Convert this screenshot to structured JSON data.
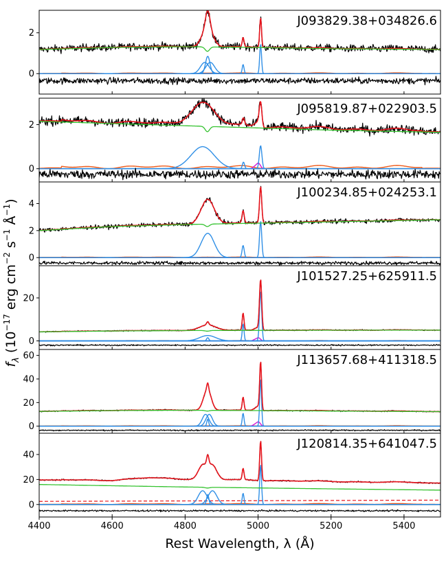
{
  "chart_data": {
    "type": "line",
    "xlabel": "Rest Wavelength, λ (Å)",
    "ylabel": "f_λ (10^-17 erg cm^-2 s^-1 Å^-1)",
    "ylabel_parts": {
      "f": "f",
      "lambda": "λ",
      "open": " (10",
      "exp1": "−17",
      "mid1": " erg cm",
      "exp2": "−2",
      "mid2": " s",
      "exp3": "−1",
      "mid3": " Å",
      "exp4": "−1",
      "close": ")"
    },
    "xlim": [
      4400,
      5500
    ],
    "xticks": [
      "4400",
      "4600",
      "4800",
      "5000",
      "5200",
      "5400"
    ],
    "panels": [
      {
        "name": "J093829.38+034826.6",
        "ylim": [
          -1.0,
          3.1
        ],
        "yticks": [
          "0",
          "2"
        ],
        "continuum": [
          [
            4400,
            1.18
          ],
          [
            4600,
            1.28
          ],
          [
            4800,
            1.32
          ],
          [
            5000,
            1.28
          ],
          [
            5200,
            1.22
          ],
          [
            5500,
            1.18
          ]
        ],
        "gaussians": [
          {
            "c": 4854,
            "a": 0.55,
            "s": 12
          },
          {
            "c": 4862,
            "a": 0.85,
            "s": 6
          },
          {
            "c": 4869,
            "a": 0.55,
            "s": 12
          },
          {
            "c": 4959,
            "a": 0.45,
            "s": 2.5
          },
          {
            "c": 5007,
            "a": 1.45,
            "s": 2.5
          }
        ],
        "fe": 0.04,
        "wing": 0,
        "noise": 0.18,
        "resid_offset": -0.35,
        "resid_noise": 0.15,
        "dashed": null
      },
      {
        "name": "J095819.87+022903.5",
        "ylim": [
          -0.6,
          3.2
        ],
        "yticks": [
          "0",
          "2"
        ],
        "continuum": [
          [
            4400,
            2.15
          ],
          [
            4600,
            2.05
          ],
          [
            4800,
            1.95
          ],
          [
            5000,
            1.85
          ],
          [
            5200,
            1.75
          ],
          [
            5500,
            1.65
          ]
        ],
        "gaussians": [
          {
            "c": 4848,
            "a": 1.0,
            "s": 32
          },
          {
            "c": 4960,
            "a": 0.3,
            "s": 3
          },
          {
            "c": 5007,
            "a": 1.05,
            "s": 3.5
          }
        ],
        "fe": 0.15,
        "wing": 0.35,
        "noise": 0.2,
        "resid_offset": -0.25,
        "resid_noise": 0.2,
        "dashed": null
      },
      {
        "name": "J100234.85+024253.1",
        "ylim": [
          -0.6,
          5.6
        ],
        "yticks": [
          "0",
          "2",
          "4"
        ],
        "continuum": [
          [
            4400,
            2.0
          ],
          [
            4600,
            2.3
          ],
          [
            4800,
            2.45
          ],
          [
            5000,
            2.55
          ],
          [
            5200,
            2.65
          ],
          [
            5500,
            2.8
          ]
        ],
        "gaussians": [
          {
            "c": 4862,
            "a": 1.8,
            "s": 18
          },
          {
            "c": 4959,
            "a": 0.9,
            "s": 3
          },
          {
            "c": 5007,
            "a": 2.7,
            "s": 3
          }
        ],
        "fe": 0.05,
        "wing": 0,
        "noise": 0.15,
        "resid_offset": -0.4,
        "resid_noise": 0.12,
        "dashed": null
      },
      {
        "name": "J101527.25+625911.5",
        "ylim": [
          -4,
          35
        ],
        "yticks": [
          "0",
          "20"
        ],
        "continuum": [
          [
            4400,
            4.2
          ],
          [
            4600,
            4.6
          ],
          [
            4800,
            4.8
          ],
          [
            5000,
            4.9
          ],
          [
            5200,
            4.95
          ],
          [
            5500,
            5.0
          ]
        ],
        "gaussians": [
          {
            "c": 4862,
            "a": 2.5,
            "s": 22
          },
          {
            "c": 4862,
            "a": 1.5,
            "s": 3
          },
          {
            "c": 4959,
            "a": 8.0,
            "s": 2.5
          },
          {
            "c": 5007,
            "a": 23.0,
            "s": 3
          }
        ],
        "fe": 0.15,
        "wing": 2.0,
        "noise": 0.25,
        "resid_offset": -2.0,
        "resid_noise": 0.3,
        "dashed": null
      },
      {
        "name": "J113657.68+411318.5",
        "ylim": [
          -6,
          65
        ],
        "yticks": [
          "0",
          "20",
          "40",
          "60"
        ],
        "continuum": [
          [
            4400,
            12.5
          ],
          [
            4600,
            13.2
          ],
          [
            4800,
            13.5
          ],
          [
            5000,
            13.2
          ],
          [
            5200,
            12.8
          ],
          [
            5500,
            12.3
          ]
        ],
        "gaussians": [
          {
            "c": 4856,
            "a": 10.0,
            "s": 9
          },
          {
            "c": 4866,
            "a": 10.0,
            "s": 9
          },
          {
            "c": 4862,
            "a": 6.0,
            "s": 2.5
          },
          {
            "c": 4959,
            "a": 11.0,
            "s": 2.5
          },
          {
            "c": 5007,
            "a": 40.0,
            "s": 2.5
          }
        ],
        "fe": 0.4,
        "wing": 5.0,
        "noise": 0.5,
        "resid_offset": -3.5,
        "resid_noise": 0.5,
        "dashed": null
      },
      {
        "name": "J120814.35+641047.5",
        "ylim": [
          -10,
          57
        ],
        "yticks": [
          "0",
          "20",
          "40"
        ],
        "continuum": [
          [
            4400,
            19.5
          ],
          [
            4600,
            19.0
          ],
          [
            4700,
            21.0
          ],
          [
            4800,
            20.0
          ],
          [
            5000,
            19.0
          ],
          [
            5200,
            18.0
          ],
          [
            5500,
            17.0
          ]
        ],
        "gaussians": [
          {
            "c": 4848,
            "a": 11.0,
            "s": 12
          },
          {
            "c": 4875,
            "a": 11.0,
            "s": 12
          },
          {
            "c": 4862,
            "a": 8.0,
            "s": 3
          },
          {
            "c": 4959,
            "a": 9.0,
            "s": 2.5
          },
          {
            "c": 5007,
            "a": 32.0,
            "s": 2.5
          }
        ],
        "fe": 0.8,
        "wing": 0,
        "noise": 0.5,
        "resid_offset": -5.0,
        "resid_noise": 0.6,
        "dashed": 2.5,
        "green": [
          [
            4400,
            16.0
          ],
          [
            4800,
            14.0
          ],
          [
            5200,
            12.5
          ],
          [
            5500,
            11.5
          ]
        ]
      }
    ],
    "colors": {
      "data": "#000000",
      "model": "#e8141c",
      "host": "#33c22e",
      "broad": "#2f8fe6",
      "fe": "#ee5a1a",
      "narrow": "#d416d4",
      "dashed": "#e8141c"
    }
  }
}
